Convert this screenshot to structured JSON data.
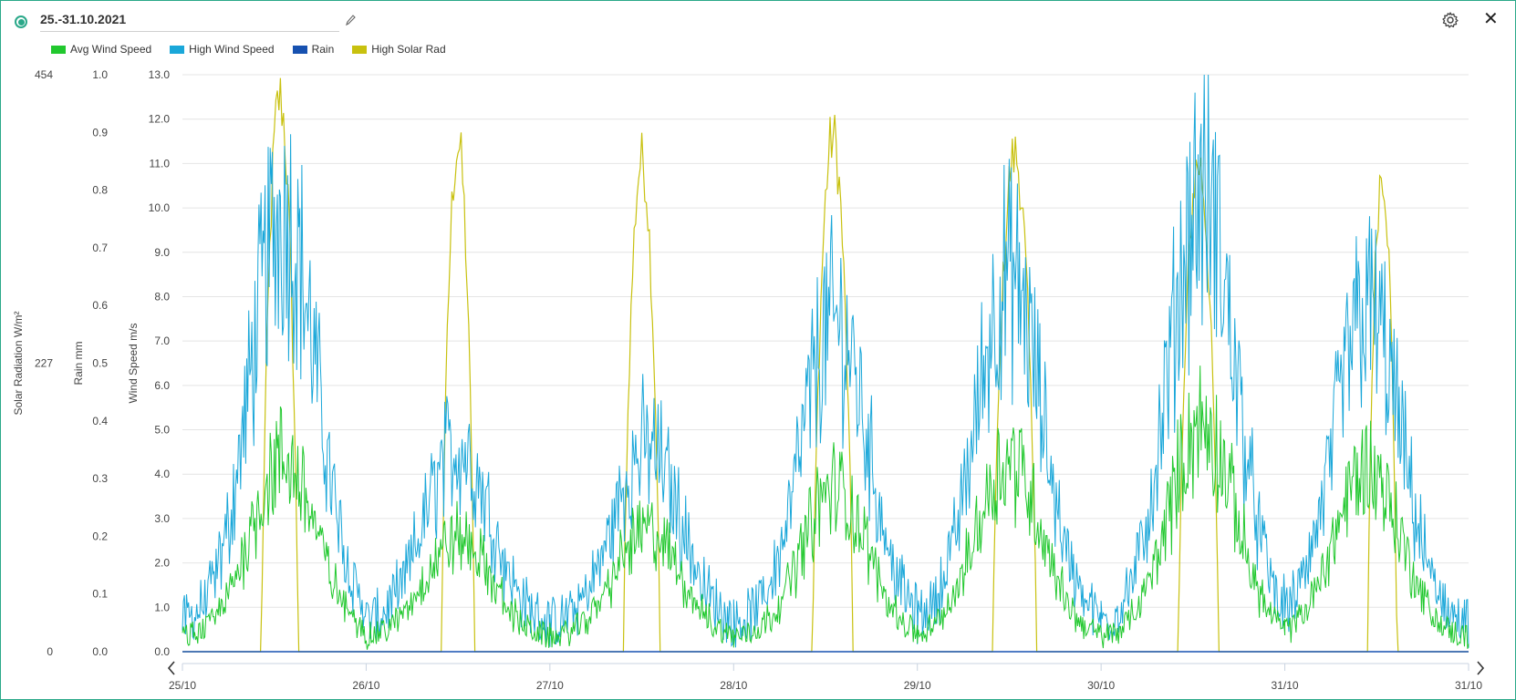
{
  "header": {
    "date_range": "25.-31.10.2021",
    "icons": {
      "radio": "radio-selected-icon",
      "edit": "pencil-icon",
      "settings": "gear-icon",
      "close": "close-icon"
    },
    "close_glyph": "✕"
  },
  "legend": [
    {
      "name": "Avg Wind Speed",
      "color": "#21c82e"
    },
    {
      "name": "High Wind Speed",
      "color": "#1aa7d9"
    },
    {
      "name": "Rain",
      "color": "#1751b0"
    },
    {
      "name": "High Solar Rad",
      "color": "#c8c10f"
    }
  ],
  "chart_data": {
    "type": "line",
    "x_tick_labels": [
      "25/10",
      "26/10",
      "27/10",
      "28/10",
      "29/10",
      "30/10",
      "31/10",
      "31/10"
    ],
    "axes": {
      "solar": {
        "label": "Solar Radiation W/m²",
        "ticks": [
          "454",
          "227",
          "0"
        ],
        "range": [
          0,
          454
        ]
      },
      "rain": {
        "label": "Rain  mm",
        "ticks": [
          "1.0",
          "0.9",
          "0.8",
          "0.7",
          "0.6",
          "0.5",
          "0.4",
          "0.3",
          "0.2",
          "0.1",
          "0.0"
        ],
        "range": [
          0,
          1.0
        ]
      },
      "wind": {
        "label": "Wind Speed m/s",
        "ticks": [
          "13.0",
          "12.0",
          "11.0",
          "10.0",
          "9.0",
          "8.0",
          "7.0",
          "6.0",
          "5.0",
          "4.0",
          "3.0",
          "2.0",
          "1.0",
          "0.0"
        ],
        "range": [
          0,
          13.0
        ]
      }
    },
    "grid": true,
    "legend_position": "top-left",
    "series": [
      {
        "name": "High Solar Rad",
        "axis": "solar",
        "color": "#c8c10f",
        "peaks": [
          {
            "day": 25,
            "center": 0.53,
            "width": 0.2,
            "peak": 454
          },
          {
            "day": 26,
            "center": 0.5,
            "width": 0.18,
            "peak": 415
          },
          {
            "day": 27,
            "center": 0.5,
            "width": 0.2,
            "peak": 403
          },
          {
            "day": 28,
            "center": 0.54,
            "width": 0.22,
            "peak": 422
          },
          {
            "day": 29,
            "center": 0.53,
            "width": 0.24,
            "peak": 407
          },
          {
            "day": 30,
            "center": 0.53,
            "width": 0.22,
            "peak": 400
          },
          {
            "day": 31,
            "center": 0.53,
            "width": 0.16,
            "peak": 395
          }
        ]
      },
      {
        "name": "High Wind Speed",
        "axis": "wind",
        "color": "#1aa7d9",
        "daily_peak": [
          {
            "day": 25,
            "center": 0.55,
            "peak": 11.6
          },
          {
            "day": 26,
            "center": 0.5,
            "peak": 5.0
          },
          {
            "day": 27,
            "center": 0.53,
            "peak": 5.0
          },
          {
            "day": 28,
            "center": 0.55,
            "peak": 8.5
          },
          {
            "day": 29,
            "center": 0.5,
            "peak": 9.8
          },
          {
            "day": 30,
            "center": 0.55,
            "peak": 12.1
          },
          {
            "day": 31,
            "center": 0.45,
            "peak": 8.9
          }
        ]
      },
      {
        "name": "Avg Wind Speed",
        "axis": "wind",
        "color": "#21c82e",
        "daily_peak": [
          {
            "day": 25,
            "center": 0.55,
            "peak": 5.0
          },
          {
            "day": 26,
            "center": 0.5,
            "peak": 2.8
          },
          {
            "day": 27,
            "center": 0.53,
            "peak": 3.0
          },
          {
            "day": 28,
            "center": 0.55,
            "peak": 4.2
          },
          {
            "day": 29,
            "center": 0.5,
            "peak": 5.0
          },
          {
            "day": 30,
            "center": 0.55,
            "peak": 6.0
          },
          {
            "day": 31,
            "center": 0.45,
            "peak": 4.8
          }
        ]
      },
      {
        "name": "Rain",
        "axis": "rain",
        "color": "#1751b0",
        "values": [
          0,
          0,
          0,
          0,
          0,
          0,
          0,
          0
        ]
      }
    ]
  }
}
